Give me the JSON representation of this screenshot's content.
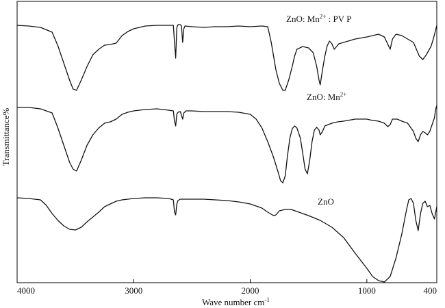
{
  "chart_data": {
    "type": "line",
    "title": "",
    "xlabel": "Wave number cm",
    "xlabel_sup": "-1",
    "ylabel": "Transmittance%",
    "xlim": [
      4000,
      400
    ],
    "x_ticks": [
      "4000",
      "3000",
      "2000",
      "1000",
      "400"
    ],
    "x_tick_values": [
      4000,
      3000,
      2000,
      1000,
      400
    ],
    "grid": false,
    "series": [
      {
        "name": "ZnO: Mn2+ : PVP",
        "label_main": "ZnO: Mn",
        "label_sup": "2+",
        "label_tail": " : PV P",
        "points": [
          [
            4000,
            35
          ],
          [
            3900,
            36
          ],
          [
            3800,
            38
          ],
          [
            3700,
            45
          ],
          [
            3650,
            65
          ],
          [
            3600,
            90
          ],
          [
            3550,
            115
          ],
          [
            3520,
            128
          ],
          [
            3490,
            130
          ],
          [
            3450,
            115
          ],
          [
            3400,
            95
          ],
          [
            3350,
            78
          ],
          [
            3300,
            70
          ],
          [
            3250,
            64
          ],
          [
            3200,
            63
          ],
          [
            3150,
            61
          ],
          [
            3100,
            50
          ],
          [
            3050,
            44
          ],
          [
            3000,
            40
          ],
          [
            2950,
            38
          ],
          [
            2900,
            36
          ],
          [
            2800,
            35
          ],
          [
            2700,
            35
          ],
          [
            2660,
            35
          ],
          [
            2650,
            60
          ],
          [
            2640,
            83
          ],
          [
            2630,
            38
          ],
          [
            2620,
            34
          ],
          [
            2600,
            34
          ],
          [
            2590,
            36
          ],
          [
            2580,
            60
          ],
          [
            2570,
            40
          ],
          [
            2560,
            36
          ],
          [
            2500,
            37
          ],
          [
            2400,
            38
          ],
          [
            2300,
            37
          ],
          [
            2200,
            37
          ],
          [
            2100,
            36
          ],
          [
            2000,
            37
          ],
          [
            1900,
            36
          ],
          [
            1850,
            37
          ],
          [
            1820,
            60
          ],
          [
            1800,
            80
          ],
          [
            1780,
            100
          ],
          [
            1750,
            120
          ],
          [
            1720,
            130
          ],
          [
            1700,
            130
          ],
          [
            1670,
            115
          ],
          [
            1640,
            95
          ],
          [
            1620,
            80
          ],
          [
            1600,
            70
          ],
          [
            1550,
            66
          ],
          [
            1500,
            68
          ],
          [
            1460,
            75
          ],
          [
            1430,
            95
          ],
          [
            1410,
            115
          ],
          [
            1400,
            122
          ],
          [
            1380,
            100
          ],
          [
            1360,
            80
          ],
          [
            1340,
            65
          ],
          [
            1320,
            58
          ],
          [
            1300,
            62
          ],
          [
            1280,
            70
          ],
          [
            1260,
            66
          ],
          [
            1240,
            62
          ],
          [
            1200,
            60
          ],
          [
            1100,
            55
          ],
          [
            1000,
            52
          ],
          [
            950,
            50
          ],
          [
            900,
            48
          ],
          [
            850,
            52
          ],
          [
            800,
            70
          ],
          [
            780,
            55
          ],
          [
            750,
            48
          ],
          [
            700,
            50
          ],
          [
            650,
            55
          ],
          [
            600,
            60
          ],
          [
            580,
            68
          ],
          [
            550,
            80
          ],
          [
            520,
            85
          ],
          [
            490,
            78
          ],
          [
            470,
            72
          ],
          [
            450,
            66
          ],
          [
            430,
            55
          ],
          [
            410,
            42
          ],
          [
            400,
            35
          ]
        ]
      },
      {
        "name": "ZnO: Mn2+",
        "label_main": "ZnO: Mn",
        "label_sup": "2+",
        "label_tail": "",
        "points": [
          [
            4000,
            155
          ],
          [
            3900,
            155
          ],
          [
            3800,
            157
          ],
          [
            3700,
            163
          ],
          [
            3650,
            185
          ],
          [
            3600,
            210
          ],
          [
            3550,
            235
          ],
          [
            3520,
            245
          ],
          [
            3490,
            248
          ],
          [
            3450,
            232
          ],
          [
            3400,
            210
          ],
          [
            3350,
            195
          ],
          [
            3300,
            185
          ],
          [
            3250,
            178
          ],
          [
            3200,
            176
          ],
          [
            3150,
            172
          ],
          [
            3100,
            165
          ],
          [
            3050,
            162
          ],
          [
            3000,
            160
          ],
          [
            2900,
            158
          ],
          [
            2800,
            157
          ],
          [
            2700,
            159
          ],
          [
            2660,
            160
          ],
          [
            2650,
            175
          ],
          [
            2640,
            182
          ],
          [
            2630,
            165
          ],
          [
            2620,
            162
          ],
          [
            2600,
            161
          ],
          [
            2580,
            172
          ],
          [
            2570,
            163
          ],
          [
            2550,
            160
          ],
          [
            2500,
            160
          ],
          [
            2400,
            161
          ],
          [
            2300,
            161
          ],
          [
            2200,
            161
          ],
          [
            2100,
            162
          ],
          [
            2000,
            165
          ],
          [
            1950,
            172
          ],
          [
            1900,
            185
          ],
          [
            1850,
            205
          ],
          [
            1800,
            228
          ],
          [
            1760,
            250
          ],
          [
            1740,
            262
          ],
          [
            1720,
            265
          ],
          [
            1700,
            255
          ],
          [
            1680,
            225
          ],
          [
            1660,
            200
          ],
          [
            1640,
            186
          ],
          [
            1620,
            182
          ],
          [
            1600,
            185
          ],
          [
            1570,
            200
          ],
          [
            1550,
            222
          ],
          [
            1530,
            245
          ],
          [
            1510,
            252
          ],
          [
            1490,
            232
          ],
          [
            1470,
            205
          ],
          [
            1450,
            188
          ],
          [
            1430,
            184
          ],
          [
            1410,
            188
          ],
          [
            1400,
            195
          ],
          [
            1380,
            190
          ],
          [
            1360,
            182
          ],
          [
            1300,
            178
          ],
          [
            1250,
            176
          ],
          [
            1200,
            175
          ],
          [
            1100,
            172
          ],
          [
            1000,
            172
          ],
          [
            950,
            174
          ],
          [
            900,
            175
          ],
          [
            850,
            178
          ],
          [
            820,
            183
          ],
          [
            800,
            180
          ],
          [
            780,
            172
          ],
          [
            740,
            172
          ],
          [
            700,
            175
          ],
          [
            650,
            178
          ],
          [
            600,
            190
          ],
          [
            580,
            200
          ],
          [
            560,
            205
          ],
          [
            540,
            195
          ],
          [
            520,
            190
          ],
          [
            500,
            192
          ],
          [
            480,
            195
          ],
          [
            460,
            190
          ],
          [
            440,
            180
          ],
          [
            420,
            170
          ],
          [
            410,
            158
          ],
          [
            400,
            152
          ]
        ]
      },
      {
        "name": "ZnO",
        "label_main": "ZnO",
        "label_sup": "",
        "label_tail": "",
        "points": [
          [
            4000,
            287
          ],
          [
            3900,
            288
          ],
          [
            3800,
            290
          ],
          [
            3750,
            298
          ],
          [
            3700,
            310
          ],
          [
            3650,
            320
          ],
          [
            3600,
            328
          ],
          [
            3550,
            333
          ],
          [
            3500,
            334
          ],
          [
            3450,
            330
          ],
          [
            3400,
            322
          ],
          [
            3350,
            315
          ],
          [
            3300,
            308
          ],
          [
            3250,
            300
          ],
          [
            3200,
            296
          ],
          [
            3150,
            292
          ],
          [
            3100,
            290
          ],
          [
            3050,
            289
          ],
          [
            3000,
            288
          ],
          [
            2900,
            287
          ],
          [
            2800,
            287
          ],
          [
            2700,
            288
          ],
          [
            2660,
            290
          ],
          [
            2650,
            308
          ],
          [
            2640,
            312
          ],
          [
            2630,
            296
          ],
          [
            2620,
            291
          ],
          [
            2600,
            289
          ],
          [
            2500,
            289
          ],
          [
            2400,
            289
          ],
          [
            2300,
            290
          ],
          [
            2200,
            291
          ],
          [
            2100,
            293
          ],
          [
            2000,
            296
          ],
          [
            1900,
            302
          ],
          [
            1850,
            308
          ],
          [
            1800,
            313
          ],
          [
            1780,
            312
          ],
          [
            1750,
            306
          ],
          [
            1700,
            304
          ],
          [
            1650,
            304
          ],
          [
            1600,
            307
          ],
          [
            1500,
            313
          ],
          [
            1400,
            320
          ],
          [
            1300,
            330
          ],
          [
            1200,
            345
          ],
          [
            1100,
            368
          ],
          [
            1000,
            390
          ],
          [
            950,
            402
          ],
          [
            900,
            408
          ],
          [
            850,
            410
          ],
          [
            800,
            402
          ],
          [
            750,
            375
          ],
          [
            700,
            340
          ],
          [
            660,
            305
          ],
          [
            640,
            290
          ],
          [
            620,
            288
          ],
          [
            600,
            295
          ],
          [
            580,
            320
          ],
          [
            560,
            335
          ],
          [
            540,
            310
          ],
          [
            520,
            295
          ],
          [
            500,
            292
          ],
          [
            480,
            300
          ],
          [
            460,
            298
          ],
          [
            440,
            310
          ],
          [
            420,
            318
          ],
          [
            400,
            300
          ]
        ]
      }
    ]
  }
}
